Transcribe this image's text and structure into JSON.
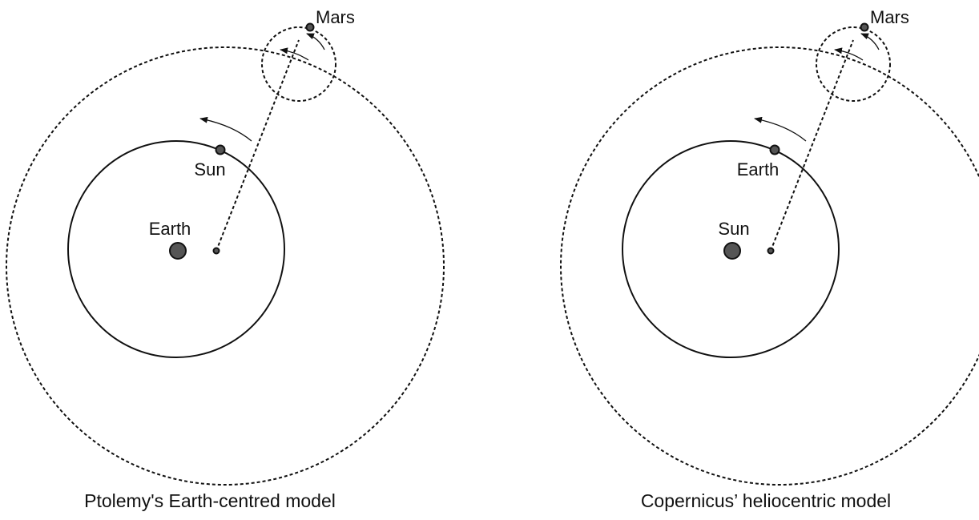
{
  "panels": [
    {
      "center_label": "Earth",
      "orbit_label": "Sun",
      "outer_label": "Mars",
      "caption": "Ptolemy's Earth-centred model"
    },
    {
      "center_label": "Sun",
      "orbit_label": "Earth",
      "outer_label": "Mars",
      "caption": "Copernicus’ heliocentric model"
    }
  ]
}
